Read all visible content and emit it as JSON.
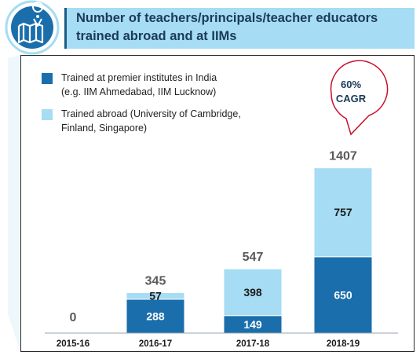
{
  "title": {
    "lines": [
      "Number of teachers/principals/teacher educators",
      "trained abroad and at IIMs"
    ]
  },
  "legend": [
    {
      "lines": [
        "Trained at premier institutes in India",
        "(e.g. IIM Ahmedabad, IIM Lucknow)"
      ],
      "color": "#1a6eab"
    },
    {
      "lines": [
        "Trained abroad (University of Cambridge,",
        "Finland, Singapore)"
      ],
      "color": "#a6dcf4"
    }
  ],
  "callout": {
    "lines": [
      "60%",
      "CAGR"
    ],
    "color": "#c8102e"
  },
  "colors": {
    "india": "#1a6eab",
    "abroad": "#a6dcf4",
    "text": "#1a3a5a"
  },
  "chart_data": {
    "type": "bar",
    "stacked": true,
    "categories": [
      "2015-16",
      "2016-17",
      "2017-18",
      "2018-19"
    ],
    "series": [
      {
        "name": "Trained at premier institutes in India (e.g. IIM Ahmedabad, IIM Lucknow)",
        "values": [
          0,
          288,
          149,
          650
        ]
      },
      {
        "name": "Trained abroad (University of Cambridge, Finland, Singapore)",
        "values": [
          0,
          57,
          398,
          757
        ]
      }
    ],
    "totals": [
      0,
      345,
      547,
      1407
    ],
    "bar_labels": [
      {
        "india": "",
        "abroad": ""
      },
      {
        "india": "288",
        "abroad": "57"
      },
      {
        "india": "149",
        "abroad": "398"
      },
      {
        "india": "650",
        "abroad": "757"
      }
    ],
    "total_labels": [
      "0",
      "345",
      "547",
      "1407"
    ],
    "legend_position": "top-left",
    "grid": false
  }
}
